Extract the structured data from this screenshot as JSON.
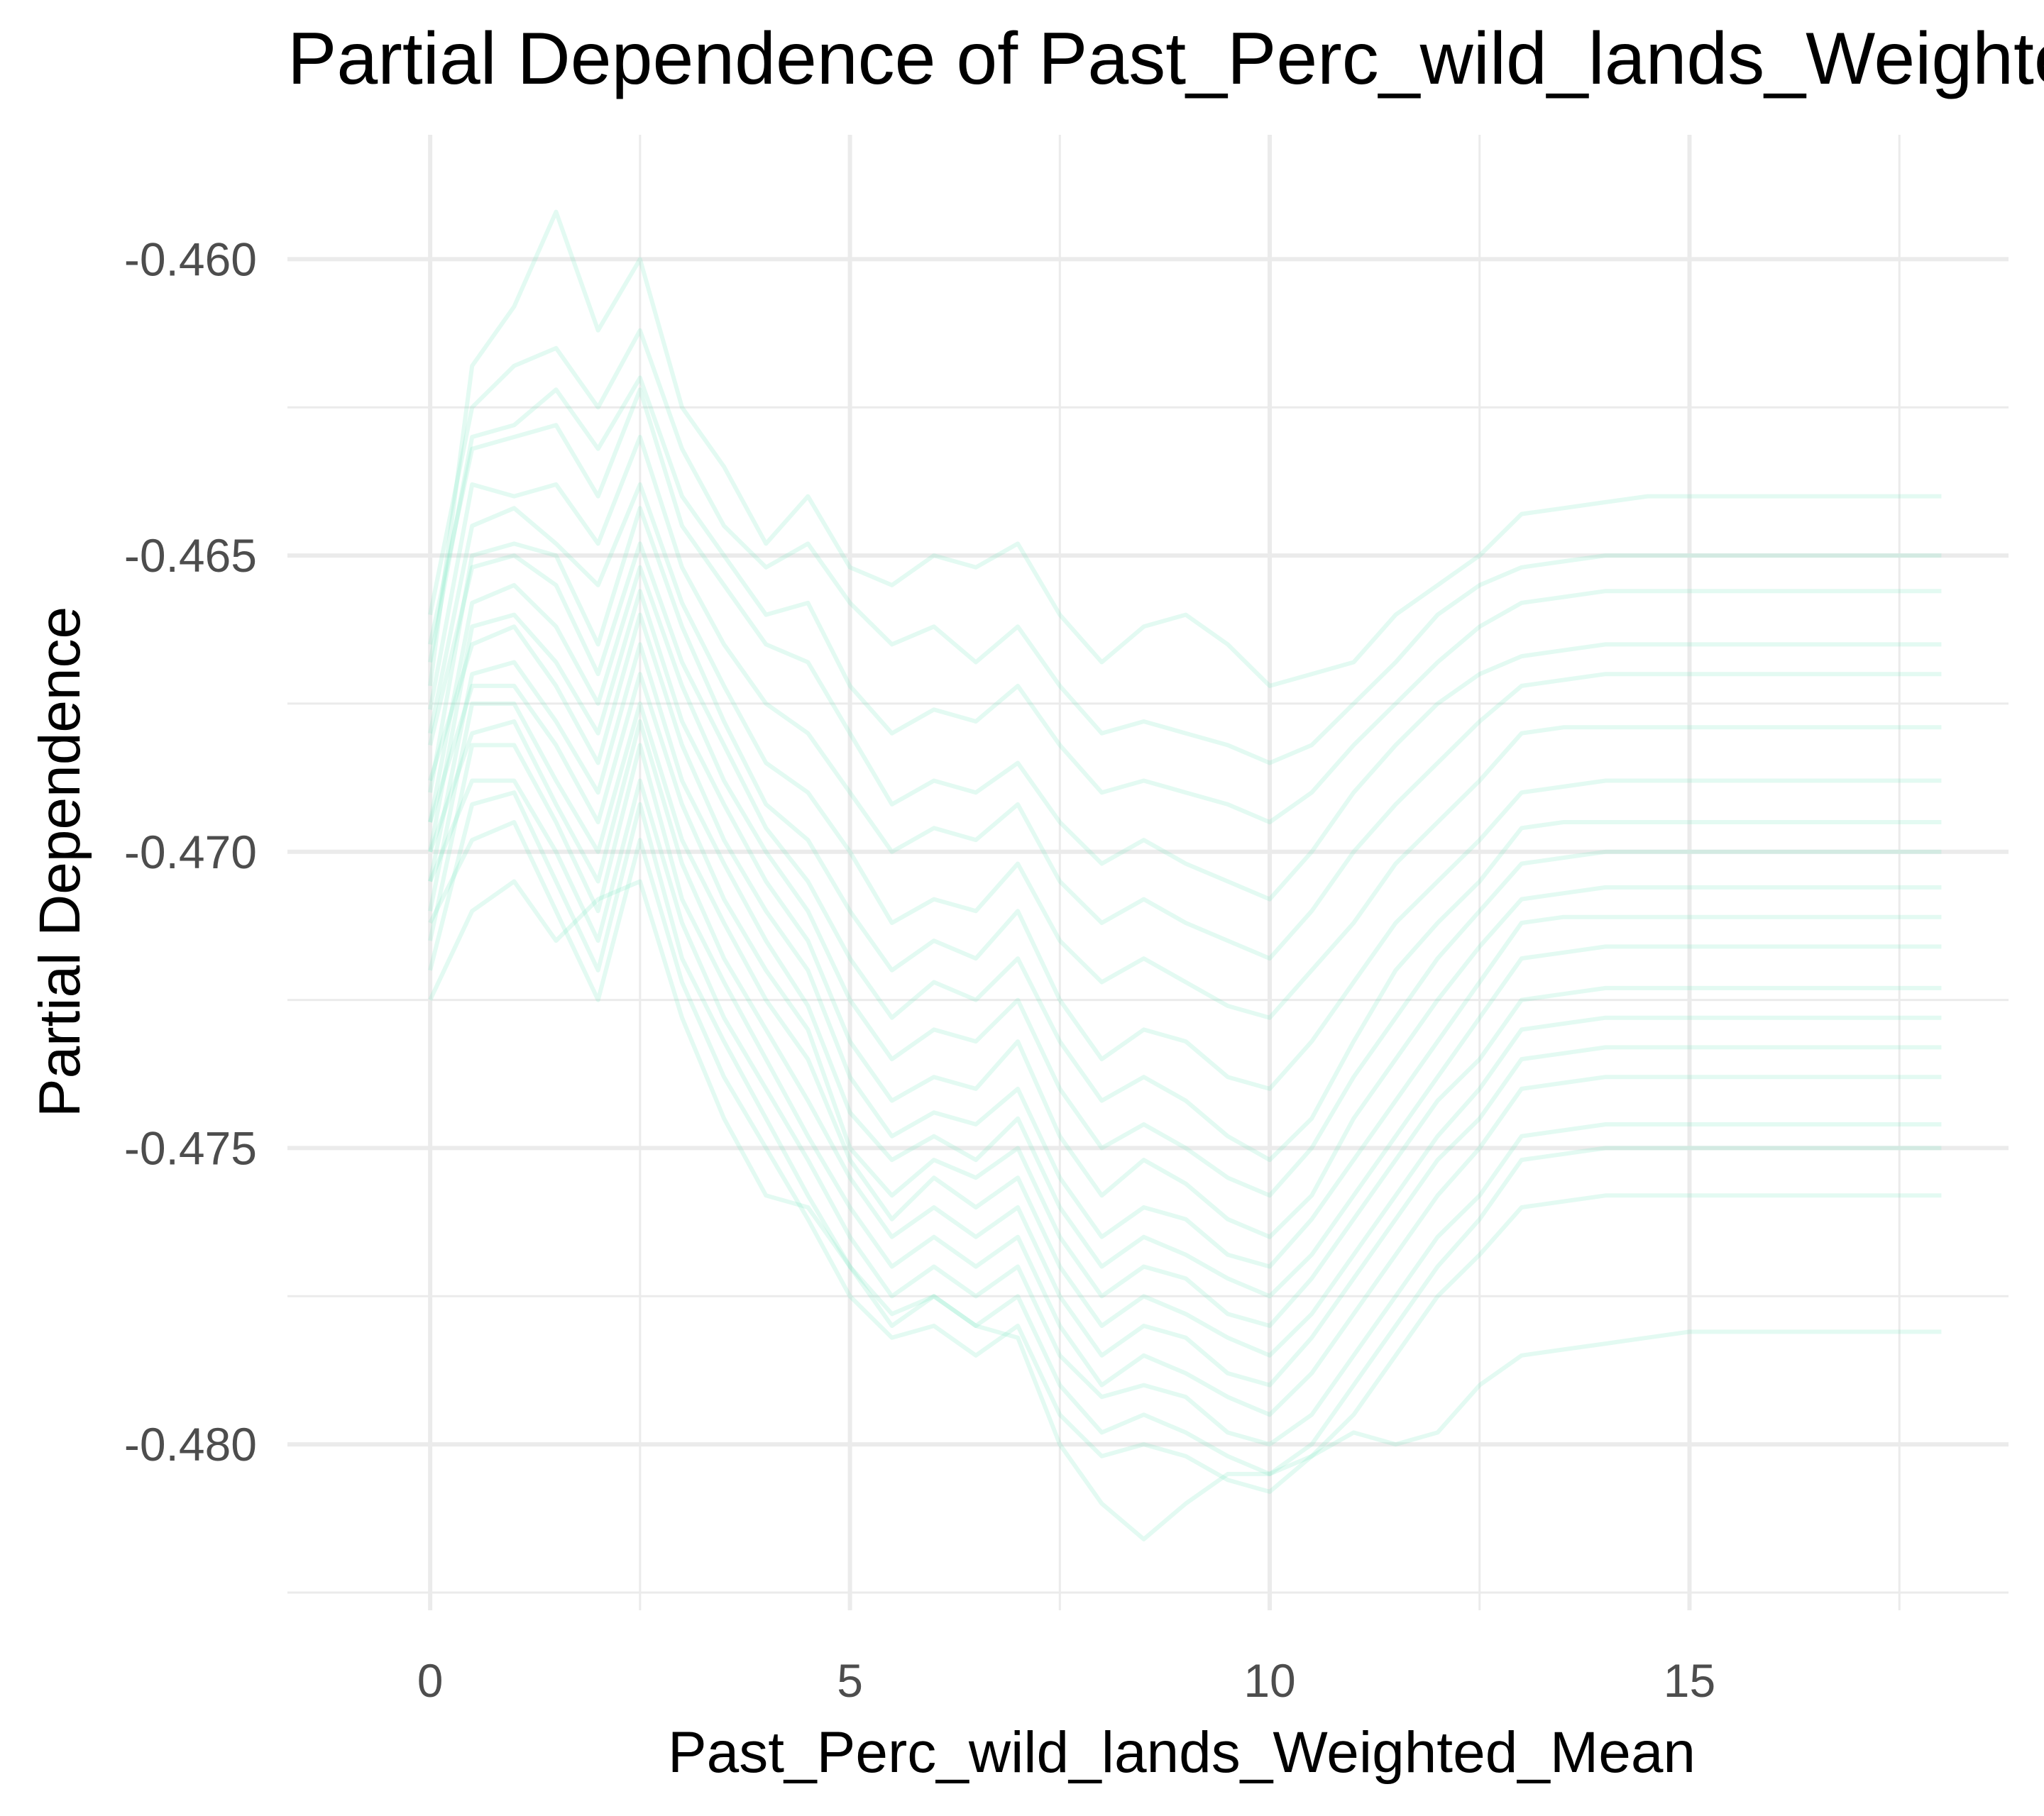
{
  "chart_data": {
    "type": "line",
    "title": "Partial Dependence of Past_Perc_wild_lands_Weighted_Mean",
    "xlabel": "Past_Perc_wild_lands_Weighted_Mean",
    "ylabel": "Partial Dependence",
    "xlim": [
      -1.7,
      18.8
    ],
    "ylim": [
      -0.4828,
      -0.4579
    ],
    "x_ticks": [
      0,
      5,
      10,
      15
    ],
    "x_tick_labels": [
      "0",
      "5",
      "10",
      "15"
    ],
    "y_ticks": [
      -0.46,
      -0.465,
      -0.47,
      -0.475,
      -0.48
    ],
    "y_tick_labels": [
      "-0.460",
      "-0.465",
      "-0.470",
      "-0.475",
      "-0.480"
    ],
    "grid": true,
    "line_color": "#7fe8c3",
    "x": [
      0,
      0.5,
      1,
      1.5,
      2,
      2.5,
      3,
      3.5,
      4,
      4.5,
      5,
      5.5,
      6,
      6.5,
      7,
      7.5,
      8,
      8.5,
      9,
      9.5,
      10,
      10.5,
      11,
      11.5,
      12,
      12.5,
      13,
      13.5,
      14,
      14.5,
      15,
      15.5,
      16,
      16.5,
      17,
      18
    ],
    "series": [
      {
        "values": [
          -0.4672,
          -0.4618,
          -0.4608,
          -0.4592,
          -0.4612,
          -0.46,
          -0.4625,
          -0.4635,
          -0.4648,
          -0.464,
          -0.4652,
          -0.4655,
          -0.465,
          -0.4652,
          -0.4648,
          -0.466,
          -0.4668,
          -0.4662,
          -0.466,
          -0.4665,
          -0.4672,
          -0.467,
          -0.4668,
          -0.466,
          -0.4655,
          -0.465,
          -0.4643,
          -0.4642,
          -0.4641,
          -0.464,
          -0.464,
          -0.464,
          -0.464,
          -0.464,
          -0.464,
          -0.464
        ]
      },
      {
        "values": [
          -0.466,
          -0.4625,
          -0.4618,
          -0.4615,
          -0.4625,
          -0.4612,
          -0.4632,
          -0.4645,
          -0.4652,
          -0.4648,
          -0.4658,
          -0.4665,
          -0.4662,
          -0.4668,
          -0.4662,
          -0.4672,
          -0.468,
          -0.4678,
          -0.468,
          -0.4682,
          -0.4685,
          -0.4682,
          -0.4675,
          -0.4668,
          -0.466,
          -0.4655,
          -0.4652,
          -0.4651,
          -0.465,
          -0.465,
          -0.465,
          -0.465,
          -0.465,
          -0.465,
          -0.465,
          -0.465
        ]
      },
      {
        "values": [
          -0.4668,
          -0.463,
          -0.4628,
          -0.4622,
          -0.4632,
          -0.462,
          -0.464,
          -0.465,
          -0.466,
          -0.4658,
          -0.4672,
          -0.468,
          -0.4676,
          -0.4678,
          -0.4672,
          -0.4682,
          -0.469,
          -0.4688,
          -0.469,
          -0.4692,
          -0.4695,
          -0.469,
          -0.4682,
          -0.4675,
          -0.4668,
          -0.4662,
          -0.4658,
          -0.4657,
          -0.4656,
          -0.4656,
          -0.4656,
          -0.4656,
          -0.4656,
          -0.4656,
          -0.4656,
          -0.4656
        ]
      },
      {
        "values": [
          -0.4665,
          -0.4632,
          -0.463,
          -0.4628,
          -0.464,
          -0.4622,
          -0.4645,
          -0.4655,
          -0.4665,
          -0.4668,
          -0.468,
          -0.4692,
          -0.4688,
          -0.469,
          -0.4685,
          -0.4695,
          -0.4702,
          -0.4698,
          -0.4702,
          -0.4705,
          -0.4708,
          -0.47,
          -0.469,
          -0.4682,
          -0.4675,
          -0.467,
          -0.4667,
          -0.4666,
          -0.4665,
          -0.4665,
          -0.4665,
          -0.4665,
          -0.4665,
          -0.4665,
          -0.4665,
          -0.4665
        ]
      },
      {
        "values": [
          -0.4676,
          -0.4638,
          -0.464,
          -0.4638,
          -0.4648,
          -0.463,
          -0.4652,
          -0.4665,
          -0.4675,
          -0.468,
          -0.469,
          -0.47,
          -0.4696,
          -0.4698,
          -0.4692,
          -0.4705,
          -0.4712,
          -0.4708,
          -0.4712,
          -0.4715,
          -0.4718,
          -0.471,
          -0.47,
          -0.4692,
          -0.4685,
          -0.4678,
          -0.4672,
          -0.4671,
          -0.467,
          -0.467,
          -0.467,
          -0.467,
          -0.467,
          -0.467,
          -0.467,
          -0.467
        ]
      },
      {
        "values": [
          -0.468,
          -0.4645,
          -0.4642,
          -0.4648,
          -0.4655,
          -0.4638,
          -0.4658,
          -0.4672,
          -0.4685,
          -0.469,
          -0.47,
          -0.4712,
          -0.4708,
          -0.471,
          -0.4702,
          -0.4715,
          -0.4722,
          -0.4718,
          -0.4722,
          -0.4726,
          -0.4728,
          -0.472,
          -0.4712,
          -0.4702,
          -0.4695,
          -0.4688,
          -0.468,
          -0.4679,
          -0.4679,
          -0.4679,
          -0.4679,
          -0.4679,
          -0.4679,
          -0.4679,
          -0.4679,
          -0.4679
        ]
      },
      {
        "values": [
          -0.469,
          -0.465,
          -0.4648,
          -0.465,
          -0.4665,
          -0.4642,
          -0.4662,
          -0.4678,
          -0.4692,
          -0.4698,
          -0.471,
          -0.472,
          -0.4715,
          -0.4718,
          -0.471,
          -0.4725,
          -0.4735,
          -0.473,
          -0.4732,
          -0.4738,
          -0.474,
          -0.4732,
          -0.4722,
          -0.4712,
          -0.4705,
          -0.4698,
          -0.469,
          -0.4689,
          -0.4688,
          -0.4688,
          -0.4688,
          -0.4688,
          -0.4688,
          -0.4688,
          -0.4688,
          -0.4688
        ]
      },
      {
        "values": [
          -0.4682,
          -0.4652,
          -0.465,
          -0.4655,
          -0.467,
          -0.4648,
          -0.4668,
          -0.4682,
          -0.4696,
          -0.4705,
          -0.4718,
          -0.4728,
          -0.4722,
          -0.4725,
          -0.4718,
          -0.4732,
          -0.4742,
          -0.4738,
          -0.4742,
          -0.4748,
          -0.4752,
          -0.4745,
          -0.4732,
          -0.472,
          -0.4712,
          -0.4705,
          -0.4696,
          -0.4695,
          -0.4695,
          -0.4695,
          -0.4695,
          -0.4695,
          -0.4695,
          -0.4695,
          -0.4695,
          -0.4695
        ]
      },
      {
        "values": [
          -0.4695,
          -0.4658,
          -0.4655,
          -0.4662,
          -0.4675,
          -0.4652,
          -0.4672,
          -0.4688,
          -0.47,
          -0.471,
          -0.4725,
          -0.4735,
          -0.473,
          -0.4732,
          -0.4725,
          -0.474,
          -0.475,
          -0.4746,
          -0.475,
          -0.4755,
          -0.4758,
          -0.475,
          -0.4738,
          -0.4728,
          -0.4718,
          -0.471,
          -0.4702,
          -0.4701,
          -0.47,
          -0.47,
          -0.47,
          -0.47,
          -0.47,
          -0.47,
          -0.47,
          -0.47
        ]
      },
      {
        "values": [
          -0.47,
          -0.4662,
          -0.466,
          -0.4668,
          -0.468,
          -0.4656,
          -0.4678,
          -0.4692,
          -0.4705,
          -0.4715,
          -0.4732,
          -0.4742,
          -0.4738,
          -0.474,
          -0.4732,
          -0.4748,
          -0.4758,
          -0.4752,
          -0.4756,
          -0.4762,
          -0.4765,
          -0.4758,
          -0.4745,
          -0.4735,
          -0.4725,
          -0.4716,
          -0.4708,
          -0.4707,
          -0.4706,
          -0.4706,
          -0.4706,
          -0.4706,
          -0.4706,
          -0.4706,
          -0.4706,
          -0.4706
        ]
      },
      {
        "values": [
          -0.4688,
          -0.4665,
          -0.4662,
          -0.4672,
          -0.4685,
          -0.466,
          -0.4682,
          -0.4698,
          -0.471,
          -0.472,
          -0.4738,
          -0.4748,
          -0.4744,
          -0.4746,
          -0.474,
          -0.4755,
          -0.4765,
          -0.476,
          -0.4762,
          -0.4768,
          -0.477,
          -0.4762,
          -0.4752,
          -0.4742,
          -0.4732,
          -0.4722,
          -0.4712,
          -0.4711,
          -0.4711,
          -0.4711,
          -0.4711,
          -0.4711,
          -0.4711,
          -0.4711,
          -0.4711,
          -0.4711
        ]
      },
      {
        "values": [
          -0.4705,
          -0.467,
          -0.4668,
          -0.4678,
          -0.469,
          -0.4665,
          -0.4688,
          -0.4702,
          -0.4715,
          -0.4726,
          -0.4744,
          -0.4752,
          -0.4748,
          -0.4752,
          -0.4745,
          -0.476,
          -0.477,
          -0.4765,
          -0.4768,
          -0.4772,
          -0.4775,
          -0.4768,
          -0.4758,
          -0.4748,
          -0.4738,
          -0.4728,
          -0.4718,
          -0.4717,
          -0.4716,
          -0.4716,
          -0.4716,
          -0.4716,
          -0.4716,
          -0.4716,
          -0.4716,
          -0.4716
        ]
      },
      {
        "values": [
          -0.4695,
          -0.4672,
          -0.4672,
          -0.4682,
          -0.4695,
          -0.467,
          -0.4692,
          -0.4708,
          -0.472,
          -0.473,
          -0.475,
          -0.4758,
          -0.4752,
          -0.4755,
          -0.475,
          -0.4765,
          -0.4775,
          -0.477,
          -0.4772,
          -0.4778,
          -0.478,
          -0.4772,
          -0.4762,
          -0.4752,
          -0.4742,
          -0.4735,
          -0.4725,
          -0.4724,
          -0.4723,
          -0.4723,
          -0.4723,
          -0.4723,
          -0.4723,
          -0.4723,
          -0.4723,
          -0.4723
        ]
      },
      {
        "values": [
          -0.471,
          -0.4675,
          -0.4675,
          -0.4688,
          -0.47,
          -0.4675,
          -0.4698,
          -0.4712,
          -0.4725,
          -0.4735,
          -0.4752,
          -0.4762,
          -0.4755,
          -0.476,
          -0.4755,
          -0.477,
          -0.478,
          -0.4775,
          -0.4778,
          -0.4782,
          -0.4785,
          -0.4778,
          -0.4768,
          -0.4758,
          -0.4748,
          -0.474,
          -0.473,
          -0.4729,
          -0.4728,
          -0.4728,
          -0.4728,
          -0.4728,
          -0.4728,
          -0.4728,
          -0.4728,
          -0.4728
        ]
      },
      {
        "values": [
          -0.47,
          -0.468,
          -0.4678,
          -0.4692,
          -0.4705,
          -0.4678,
          -0.4702,
          -0.4718,
          -0.473,
          -0.4742,
          -0.4755,
          -0.4765,
          -0.476,
          -0.4765,
          -0.476,
          -0.4775,
          -0.4785,
          -0.478,
          -0.4782,
          -0.4788,
          -0.479,
          -0.4782,
          -0.4772,
          -0.4762,
          -0.4752,
          -0.4745,
          -0.4735,
          -0.4734,
          -0.4733,
          -0.4733,
          -0.4733,
          -0.4733,
          -0.4733,
          -0.4733,
          -0.4733,
          -0.4733
        ]
      },
      {
        "values": [
          -0.4715,
          -0.4682,
          -0.4682,
          -0.4695,
          -0.471,
          -0.4682,
          -0.4708,
          -0.4722,
          -0.4735,
          -0.4748,
          -0.476,
          -0.477,
          -0.4765,
          -0.477,
          -0.4765,
          -0.478,
          -0.479,
          -0.4785,
          -0.4788,
          -0.4792,
          -0.4795,
          -0.4788,
          -0.4778,
          -0.4768,
          -0.4758,
          -0.475,
          -0.474,
          -0.4739,
          -0.4738,
          -0.4738,
          -0.4738,
          -0.4738,
          -0.4738,
          -0.4738,
          -0.4738,
          -0.4738
        ]
      },
      {
        "values": [
          -0.4705,
          -0.4688,
          -0.4688,
          -0.47,
          -0.4715,
          -0.4688,
          -0.4712,
          -0.4728,
          -0.474,
          -0.4752,
          -0.4765,
          -0.4775,
          -0.477,
          -0.4775,
          -0.477,
          -0.4785,
          -0.4792,
          -0.479,
          -0.4792,
          -0.4798,
          -0.48,
          -0.4795,
          -0.4785,
          -0.4775,
          -0.4765,
          -0.4758,
          -0.4748,
          -0.4747,
          -0.4746,
          -0.4746,
          -0.4746,
          -0.4746,
          -0.4746,
          -0.4746,
          -0.4746,
          -0.4746
        ]
      },
      {
        "values": [
          -0.472,
          -0.4692,
          -0.469,
          -0.4705,
          -0.472,
          -0.4692,
          -0.4718,
          -0.4732,
          -0.4745,
          -0.4758,
          -0.477,
          -0.478,
          -0.4775,
          -0.478,
          -0.4775,
          -0.479,
          -0.4798,
          -0.4795,
          -0.4798,
          -0.4802,
          -0.4805,
          -0.48,
          -0.479,
          -0.478,
          -0.477,
          -0.4762,
          -0.4752,
          -0.4751,
          -0.475,
          -0.475,
          -0.475,
          -0.475,
          -0.475,
          -0.475,
          -0.475,
          -0.475
        ]
      },
      {
        "values": [
          -0.4712,
          -0.4698,
          -0.4695,
          -0.471,
          -0.4725,
          -0.4698,
          -0.4722,
          -0.4738,
          -0.475,
          -0.4762,
          -0.4775,
          -0.4782,
          -0.478,
          -0.4785,
          -0.478,
          -0.4795,
          -0.4802,
          -0.48,
          -0.4802,
          -0.4806,
          -0.4808,
          -0.4802,
          -0.4795,
          -0.4785,
          -0.4775,
          -0.4768,
          -0.476,
          -0.4759,
          -0.4758,
          -0.4758,
          -0.4758,
          -0.4758,
          -0.4758,
          -0.4758,
          -0.4758,
          -0.4758
        ]
      },
      {
        "values": [
          -0.4725,
          -0.471,
          -0.4705,
          -0.4715,
          -0.4708,
          -0.4705,
          -0.4728,
          -0.4745,
          -0.4758,
          -0.476,
          -0.477,
          -0.4778,
          -0.4775,
          -0.478,
          -0.4782,
          -0.48,
          -0.481,
          -0.4816,
          -0.481,
          -0.4805,
          -0.4805,
          -0.4802,
          -0.4798,
          -0.48,
          -0.4798,
          -0.479,
          -0.4785,
          -0.4784,
          -0.4783,
          -0.4782,
          -0.4781,
          -0.4781,
          -0.4781,
          -0.4781,
          -0.4781,
          -0.4781
        ]
      }
    ]
  }
}
